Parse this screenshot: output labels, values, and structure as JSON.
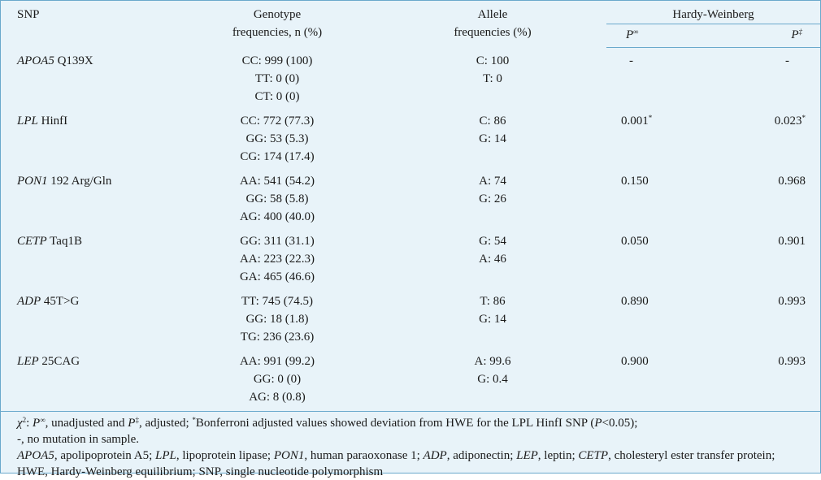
{
  "header": {
    "snp": "SNP",
    "genotype_l1": "Genotype",
    "genotype_l2": "frequencies, n (%)",
    "allele_l1": "Allele",
    "allele_l2": "frequencies (%)",
    "hw": "Hardy-Weinberg",
    "p_unadj": "P",
    "p_unadj_sup": "∞",
    "p_adj": "P",
    "p_adj_sup": "‡"
  },
  "rows": [
    {
      "gene": "APOA5",
      "variant": " Q139X",
      "genotypes": [
        "CC: 999 (100)",
        "TT: 0 (0)",
        "CT: 0 (0)"
      ],
      "alleles": [
        "C: 100",
        "T: 0"
      ],
      "p_unadj": "-",
      "p_unadj_mark": "",
      "p_adj": "-",
      "p_adj_mark": ""
    },
    {
      "gene": "LPL",
      "variant": " HinfI",
      "genotypes": [
        "CC: 772 (77.3)",
        "GG: 53 (5.3)",
        "CG: 174 (17.4)"
      ],
      "alleles": [
        "C: 86",
        "G: 14"
      ],
      "p_unadj": "0.001",
      "p_unadj_mark": "*",
      "p_adj": "0.023",
      "p_adj_mark": "*"
    },
    {
      "gene": "PON1",
      "variant": " 192 Arg/Gln",
      "genotypes": [
        "AA: 541 (54.2)",
        "GG: 58 (5.8)",
        "AG: 400 (40.0)"
      ],
      "alleles": [
        "A: 74",
        "G: 26"
      ],
      "p_unadj": "0.150",
      "p_unadj_mark": "",
      "p_adj": "0.968",
      "p_adj_mark": ""
    },
    {
      "gene": "CETP",
      "variant": " Taq1B",
      "genotypes": [
        "GG: 311 (31.1)",
        "AA: 223 (22.3)",
        "GA: 465 (46.6)"
      ],
      "alleles": [
        "G: 54",
        "A: 46"
      ],
      "p_unadj": "0.050",
      "p_unadj_mark": "",
      "p_adj": "0.901",
      "p_adj_mark": ""
    },
    {
      "gene": "ADP",
      "variant": " 45T>G",
      "genotypes": [
        "TT: 745 (74.5)",
        "GG: 18 (1.8)",
        "TG: 236 (23.6)"
      ],
      "alleles": [
        "T: 86",
        "G: 14"
      ],
      "p_unadj": "0.890",
      "p_unadj_mark": "",
      "p_adj": "0.993",
      "p_adj_mark": ""
    },
    {
      "gene": "LEP",
      "variant": " 25CAG",
      "genotypes": [
        "AA: 991 (99.2)",
        "GG: 0 (0)",
        "AG: 8 (0.8)"
      ],
      "alleles": [
        "A: 99.6",
        "G: 0.4"
      ],
      "p_unadj": "0.900",
      "p_unadj_mark": "",
      "p_adj": "0.993",
      "p_adj_mark": ""
    }
  ],
  "footnotes": {
    "line1": {
      "chi": "χ",
      "chi_sup": "2",
      "t1": ": ",
      "p1": "P",
      "p1_sup": "∞",
      "t2": ", unadjusted and ",
      "p2": "P",
      "p2_sup": "‡",
      "t3": ", adjusted; ",
      "star": "*",
      "t4": "Bonferroni adjusted values showed deviation from HWE for the LPL HinfI SNP (",
      "p3": "P",
      "t5": "<0.05);"
    },
    "line2": "-, no mutation in sample.",
    "abbrev": [
      {
        "term": "APOA5",
        "def": ", apolipoprotein A5; "
      },
      {
        "term": "LPL",
        "def": ", lipoprotein lipase; "
      },
      {
        "term": "PON1",
        "def": ", human paraoxonase 1; "
      },
      {
        "term": "ADP",
        "def": ", adiponectin; "
      },
      {
        "term": "LEP",
        "def": ", leptin; "
      },
      {
        "term": "CETP",
        "def": ", cholesteryl ester transfer protein; HWE, Hardy-Weinberg equilibrium; SNP, single nucleotide polymorphism"
      }
    ]
  }
}
